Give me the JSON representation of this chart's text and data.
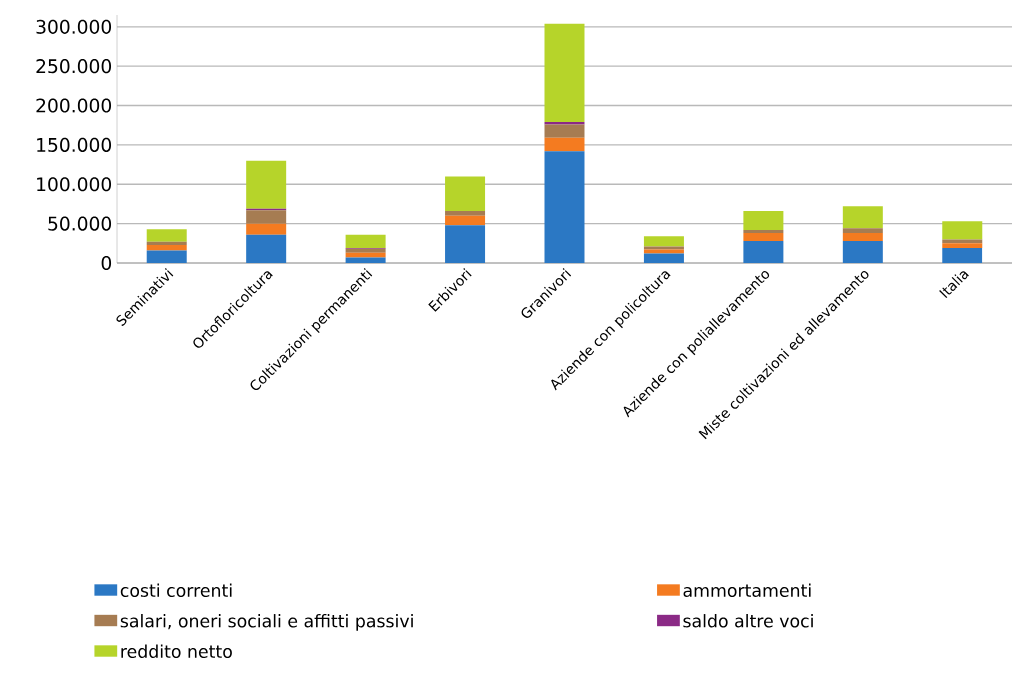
{
  "chart_data": {
    "type": "bar",
    "stacked": true,
    "categories": [
      "Seminativi",
      "Ortofloricoltura",
      "Coltivazioni permanenti",
      "Erbivori",
      "Granivori",
      "Aziende con policoltura",
      "Aziende con poliallevamento",
      "Miste coltivazioni ed allevamento",
      "Italia"
    ],
    "series": [
      {
        "name": "costi correnti",
        "color": "#2b78c4",
        "values": [
          16000,
          36000,
          7000,
          48000,
          142000,
          12000,
          28000,
          28000,
          19000
        ]
      },
      {
        "name": "ammortamenti",
        "color": "#f47b20",
        "values": [
          7000,
          14000,
          6000,
          12000,
          17000,
          5000,
          10000,
          10000,
          6000
        ]
      },
      {
        "name": "salari, oneri sociali e affitti passivi",
        "color": "#a67c52",
        "values": [
          4000,
          17000,
          5000,
          6000,
          17000,
          4000,
          4000,
          6000,
          5000
        ]
      },
      {
        "name": "saldo altre voci",
        "color": "#8b2a86",
        "values": [
          null,
          2000,
          1000,
          null,
          3000,
          null,
          null,
          null,
          null
        ]
      },
      {
        "name": "reddito netto",
        "color": "#b6d42a",
        "values": [
          16000,
          61000,
          17000,
          44000,
          125000,
          13000,
          24000,
          28000,
          23000
        ]
      }
    ],
    "ylim": [
      0,
      315000
    ],
    "yticks": [
      {
        "value": 0,
        "label": "0"
      },
      {
        "value": 50000,
        "label": "50.000"
      },
      {
        "value": 100000,
        "label": "100.000"
      },
      {
        "value": 150000,
        "label": "150.000"
      },
      {
        "value": 200000,
        "label": "200.000"
      },
      {
        "value": 250000,
        "label": "250.000"
      },
      {
        "value": 300000,
        "label": "300.000"
      }
    ],
    "grid": "y",
    "legend": "bottom"
  }
}
